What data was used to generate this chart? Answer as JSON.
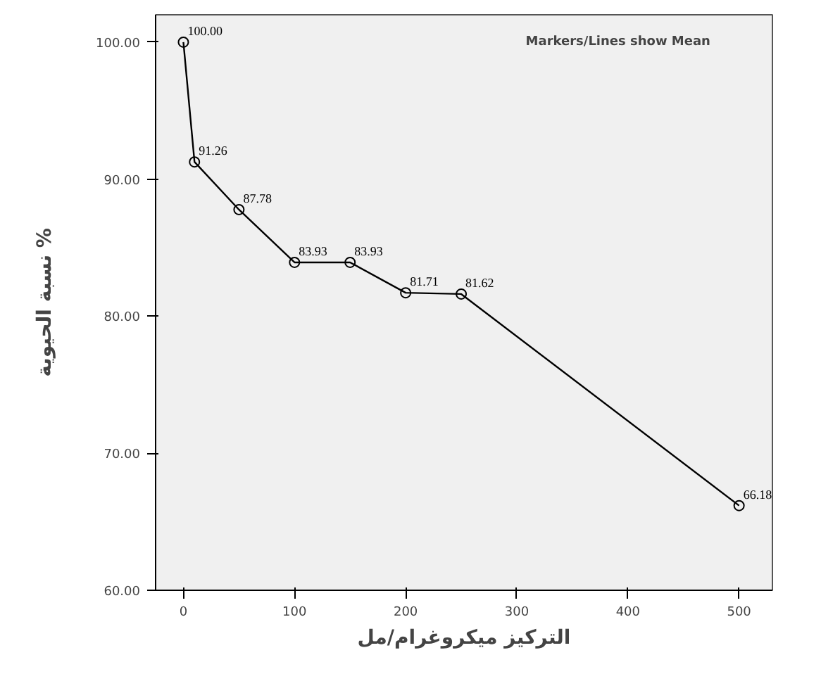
{
  "chart_data": {
    "type": "line",
    "xlabel": "التركيز ميكروغرام/مل",
    "ylabel": "نسبة الحيوية %",
    "annotations": [
      "Markers/Lines show Mean"
    ],
    "x": [
      0,
      10,
      50,
      100,
      150,
      200,
      250,
      500
    ],
    "series": [
      {
        "color": "#000000",
        "values": [
          100.0,
          91.26,
          87.78,
          83.93,
          83.93,
          81.71,
          81.62,
          66.18
        ],
        "value_labels": [
          "100.00",
          "91.26",
          "87.78",
          "83.93",
          "83.93",
          "81.71",
          "81.62",
          "66.18"
        ]
      }
    ],
    "xlim": [
      -25,
      530
    ],
    "xticks": [
      0,
      100,
      200,
      300,
      400,
      500
    ],
    "ylim": [
      60,
      102
    ],
    "yticks": [
      {
        "value": 60,
        "label": "60.00"
      },
      {
        "value": 70,
        "label": "70.00"
      },
      {
        "value": 80,
        "label": "80.00"
      },
      {
        "value": 90,
        "label": "90.00"
      },
      {
        "value": 100,
        "label": "100.00"
      }
    ],
    "grid": false,
    "marker": "circle",
    "line_style": "solid"
  }
}
